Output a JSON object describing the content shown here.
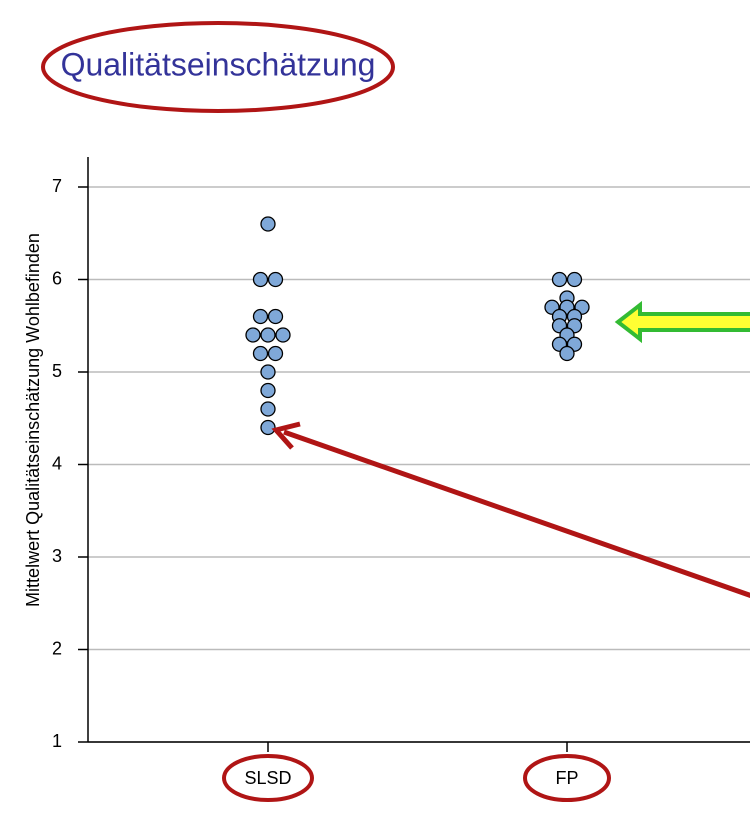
{
  "chart_data": {
    "type": "dot",
    "title": "Qualitätseinschätzung",
    "y_label": "Mittelwert Qualitätseinschätzung Wohlbefinden",
    "categories": [
      "SLSD",
      "FP"
    ],
    "values": [
      [
        6.6,
        6.0,
        6.0,
        5.6,
        5.6,
        5.4,
        5.4,
        5.4,
        5.2,
        5.2,
        5.0,
        4.8,
        4.6,
        4.4
      ],
      [
        6.0,
        6.0,
        5.8,
        5.7,
        5.7,
        5.7,
        5.6,
        5.6,
        5.5,
        5.5,
        5.4,
        5.3,
        5.3,
        5.2
      ]
    ],
    "color": "#7fa8d8",
    "ylim": [
      1,
      7
    ],
    "yticks": [
      1,
      2,
      3,
      4,
      5,
      6,
      7
    ],
    "grid": true
  }
}
